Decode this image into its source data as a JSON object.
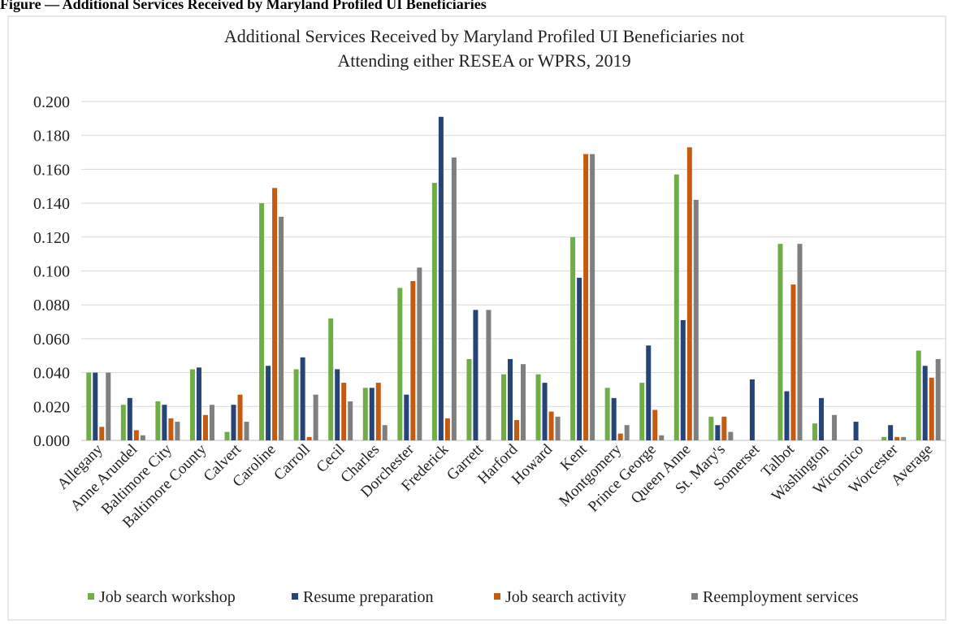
{
  "figure_caption": "Figure — Additional Services Received by Maryland Profiled UI Beneficiaries",
  "chart_data": {
    "type": "bar",
    "title": "Additional Services Received by Maryland Profiled UI Beneficiaries not Attending either RESEA or WPRS, 2019",
    "title_lines": [
      "Additional Services Received by Maryland Profiled UI Beneficiaries not",
      "Attending either RESEA or WPRS, 2019"
    ],
    "xlabel": "",
    "ylabel": "",
    "ylim": [
      0,
      0.2
    ],
    "yticks": [
      "0.000",
      "0.020",
      "0.040",
      "0.060",
      "0.080",
      "0.100",
      "0.120",
      "0.140",
      "0.160",
      "0.180",
      "0.200"
    ],
    "grid": true,
    "legend_position": "bottom",
    "categories": [
      "Allegany",
      "Anne Arundel",
      "Baltimore City",
      "Baltimore County",
      "Calvert",
      "Caroline",
      "Carroll",
      "Cecil",
      "Charles",
      "Dorchester",
      "Frederick",
      "Garrett",
      "Harford",
      "Howard",
      "Kent",
      "Montgomery",
      "Prince George",
      "Queen Anne",
      "St. Mary's",
      "Somerset",
      "Talbot",
      "Washington",
      "Wicomico",
      "Worcester",
      "Average"
    ],
    "series": [
      {
        "name": "Job search workshop",
        "color": "#70AD47",
        "values": [
          0.04,
          0.021,
          0.023,
          0.042,
          0.005,
          0.14,
          0.042,
          0.072,
          0.031,
          0.09,
          0.152,
          0.048,
          0.039,
          0.039,
          0.12,
          0.031,
          0.034,
          0.157,
          0.014,
          0.0,
          0.116,
          0.01,
          0.0,
          0.002,
          0.053
        ]
      },
      {
        "name": "Resume preparation",
        "color": "#264478",
        "values": [
          0.04,
          0.025,
          0.021,
          0.043,
          0.021,
          0.044,
          0.049,
          0.042,
          0.031,
          0.027,
          0.191,
          0.077,
          0.048,
          0.034,
          0.096,
          0.025,
          0.056,
          0.071,
          0.009,
          0.036,
          0.029,
          0.025,
          0.011,
          0.009,
          0.044
        ]
      },
      {
        "name": "Job search activity",
        "color": "#C55A11",
        "values": [
          0.008,
          0.006,
          0.013,
          0.015,
          0.027,
          0.149,
          0.002,
          0.034,
          0.034,
          0.094,
          0.013,
          0.0,
          0.012,
          0.017,
          0.169,
          0.004,
          0.018,
          0.173,
          0.014,
          0.0,
          0.092,
          0.0,
          0.0,
          0.002,
          0.037
        ]
      },
      {
        "name": "Reemployment services",
        "color": "#7F7F7F",
        "values": [
          0.04,
          0.003,
          0.011,
          0.021,
          0.011,
          0.132,
          0.027,
          0.023,
          0.009,
          0.102,
          0.167,
          0.077,
          0.045,
          0.014,
          0.169,
          0.009,
          0.003,
          0.142,
          0.005,
          0.0,
          0.116,
          0.015,
          0.0,
          0.002,
          0.048
        ]
      }
    ]
  }
}
